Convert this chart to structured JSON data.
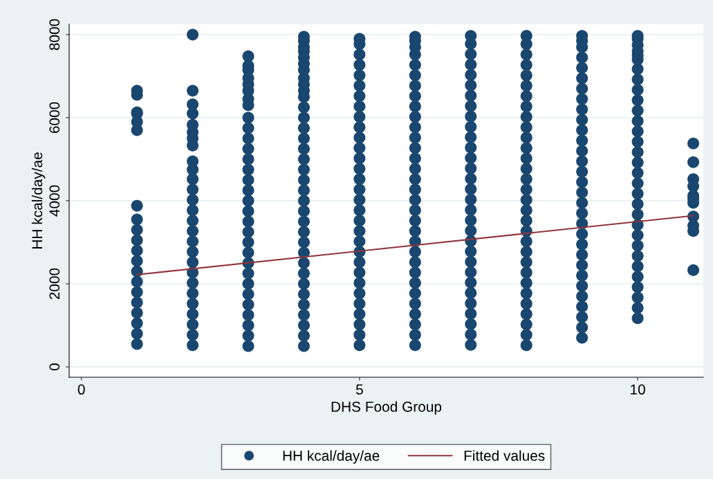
{
  "chart_data": {
    "type": "scatter",
    "xlabel": "DHS Food Group",
    "ylabel": "HH kcal/day/ae",
    "xlim": [
      -0.22,
      11.18
    ],
    "ylim": [
      -250,
      8250
    ],
    "xticks": [
      0,
      5,
      10
    ],
    "yticks": [
      0,
      2000,
      4000,
      6000,
      8000
    ],
    "grid": "y",
    "legend": "bottom",
    "marker": "circle",
    "series": [
      {
        "name": "HH kcal/day/ae",
        "color": "#1a476f",
        "x": [
          1,
          1,
          1,
          1,
          1,
          1,
          1,
          1,
          1,
          1,
          1,
          1,
          1,
          1,
          1,
          1,
          1,
          1,
          1,
          1,
          2,
          2,
          2,
          2,
          2,
          2,
          2,
          2,
          2,
          2,
          2,
          2,
          2,
          2,
          2,
          2,
          2,
          2,
          2,
          2,
          2,
          2,
          2,
          2,
          2,
          2,
          2,
          3,
          3,
          3,
          3,
          3,
          3,
          3,
          3,
          3,
          3,
          3,
          3,
          3,
          3,
          3,
          3,
          3,
          3,
          3,
          3,
          3,
          3,
          3,
          3,
          3,
          3,
          3,
          3,
          3,
          3,
          3,
          4,
          4,
          4,
          4,
          4,
          4,
          4,
          4,
          4,
          4,
          4,
          4,
          4,
          4,
          4,
          4,
          4,
          4,
          4,
          4,
          4,
          4,
          4,
          4,
          4,
          4,
          4,
          4,
          4,
          4,
          4,
          4,
          4,
          4,
          4,
          5,
          5,
          5,
          5,
          5,
          5,
          5,
          5,
          5,
          5,
          5,
          5,
          5,
          5,
          5,
          5,
          5,
          5,
          5,
          5,
          5,
          5,
          5,
          5,
          5,
          5,
          5,
          5,
          5,
          5,
          5,
          6,
          6,
          6,
          6,
          6,
          6,
          6,
          6,
          6,
          6,
          6,
          6,
          6,
          6,
          6,
          6,
          6,
          6,
          6,
          6,
          6,
          6,
          6,
          6,
          6,
          6,
          6,
          6,
          6,
          6,
          6,
          6,
          7,
          7,
          7,
          7,
          7,
          7,
          7,
          7,
          7,
          7,
          7,
          7,
          7,
          7,
          7,
          7,
          7,
          7,
          7,
          7,
          7,
          7,
          7,
          7,
          7,
          7,
          7,
          7,
          7,
          7,
          7,
          8,
          8,
          8,
          8,
          8,
          8,
          8,
          8,
          8,
          8,
          8,
          8,
          8,
          8,
          8,
          8,
          8,
          8,
          8,
          8,
          8,
          8,
          8,
          8,
          8,
          8,
          8,
          8,
          8,
          8,
          8,
          9,
          9,
          9,
          9,
          9,
          9,
          9,
          9,
          9,
          9,
          9,
          9,
          9,
          9,
          9,
          9,
          9,
          9,
          9,
          9,
          9,
          9,
          9,
          9,
          9,
          9,
          9,
          9,
          9,
          9,
          9,
          10,
          10,
          10,
          10,
          10,
          10,
          10,
          10,
          10,
          10,
          10,
          10,
          10,
          10,
          10,
          10,
          10,
          10,
          10,
          10,
          10,
          10,
          10,
          10,
          10,
          10,
          10,
          10,
          10,
          10,
          10,
          11,
          11,
          11,
          11,
          11,
          11,
          11,
          11,
          11,
          11,
          11
        ],
        "values": [
          550,
          800,
          1050,
          1300,
          1550,
          1800,
          2050,
          2300,
          2550,
          2800,
          3050,
          3300,
          3550,
          3880,
          5700,
          5900,
          6100,
          6130,
          6550,
          6650,
          520,
          770,
          1020,
          1270,
          1520,
          1770,
          2020,
          2270,
          2520,
          2770,
          3020,
          3270,
          3520,
          3770,
          4020,
          4270,
          4520,
          4750,
          4950,
          5330,
          5500,
          5650,
          5830,
          6100,
          6320,
          6650,
          8000,
          500,
          750,
          1000,
          1250,
          1500,
          1750,
          2000,
          2250,
          2500,
          2750,
          3000,
          3250,
          3500,
          3750,
          4000,
          4250,
          4500,
          4750,
          5000,
          5250,
          5500,
          5750,
          6000,
          6300,
          6450,
          6650,
          6800,
          6950,
          7150,
          7250,
          7480,
          500,
          750,
          1000,
          1250,
          1500,
          1750,
          2000,
          2250,
          2500,
          2750,
          3000,
          3250,
          3500,
          3750,
          4000,
          4250,
          4500,
          4750,
          5000,
          5250,
          5500,
          5750,
          6000,
          6250,
          6500,
          6650,
          6800,
          6950,
          7150,
          7300,
          7450,
          7600,
          7700,
          7850,
          7950,
          520,
          770,
          1020,
          1270,
          1520,
          1770,
          2020,
          2270,
          2520,
          2770,
          3020,
          3270,
          3520,
          3770,
          4020,
          4270,
          4520,
          4770,
          5020,
          5270,
          5520,
          5770,
          6020,
          6270,
          6520,
          6770,
          7020,
          7270,
          7520,
          7770,
          7900,
          520,
          770,
          1020,
          1270,
          1520,
          1770,
          2020,
          2270,
          2520,
          2770,
          3020,
          3270,
          3520,
          3770,
          4020,
          4270,
          4520,
          4770,
          5020,
          5270,
          5520,
          5770,
          6020,
          6270,
          6520,
          6770,
          7020,
          7270,
          7520,
          7700,
          7850,
          7950,
          530,
          780,
          1030,
          1280,
          1530,
          1780,
          2030,
          2280,
          2530,
          2780,
          3030,
          3280,
          3530,
          3780,
          4030,
          4280,
          4530,
          4780,
          5030,
          5280,
          5530,
          5780,
          6030,
          6280,
          6530,
          6780,
          7030,
          7280,
          7530,
          7780,
          7970,
          520,
          770,
          1020,
          1270,
          1520,
          1770,
          2020,
          2270,
          2520,
          2770,
          3020,
          3270,
          3520,
          3770,
          4020,
          4270,
          4520,
          4770,
          5020,
          5270,
          5520,
          5770,
          6020,
          6270,
          6520,
          6770,
          7020,
          7270,
          7520,
          7770,
          7970,
          700,
          950,
          1200,
          1450,
          1700,
          1950,
          2200,
          2450,
          2700,
          2950,
          3200,
          3450,
          3700,
          3950,
          4200,
          4450,
          4700,
          4950,
          5200,
          5450,
          5700,
          5950,
          6200,
          6450,
          6700,
          6950,
          7200,
          7450,
          7700,
          7850,
          7970,
          1170,
          1420,
          1670,
          1920,
          2170,
          2420,
          2670,
          2920,
          3170,
          3420,
          3670,
          3920,
          4170,
          4420,
          4670,
          4920,
          5170,
          5420,
          5670,
          5920,
          6170,
          6420,
          6670,
          6920,
          7170,
          7400,
          7500,
          7600,
          7750,
          7900,
          7970,
          5380,
          4930,
          4520,
          4350,
          4120,
          4050,
          3950,
          3620,
          3400,
          3270,
          2330
        ]
      },
      {
        "name": "Fitted values",
        "type": "line",
        "color": "#90353b",
        "marker": "none",
        "x": [
          1,
          11
        ],
        "values": [
          2220,
          3640
        ]
      }
    ]
  }
}
